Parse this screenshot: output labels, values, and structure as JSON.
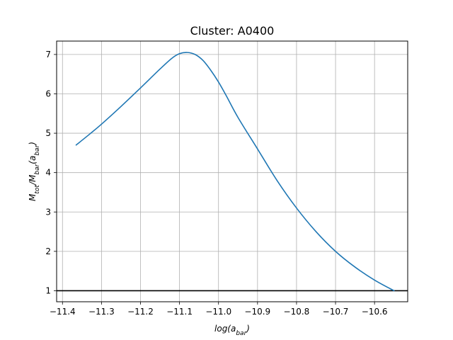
{
  "chart_data": {
    "type": "line",
    "title": "Cluster: A0400",
    "xlabel_main": "log(a",
    "xlabel_sub": "bar",
    "xlabel_close": ")",
    "ylabel_parts": {
      "m1": "M",
      "s1": "tot",
      "slash": "/M",
      "s2": "bar",
      "open": "(a",
      "s3": "bar",
      "close": ")"
    },
    "xlim": [
      -11.415,
      -10.515
    ],
    "ylim": [
      0.72,
      7.34
    ],
    "xticks": [
      -11.4,
      -11.3,
      -11.2,
      -11.1,
      -11.0,
      -10.9,
      -10.8,
      -10.7,
      -10.6
    ],
    "xtick_labels": [
      "−11.4",
      "−11.3",
      "−11.2",
      "−11.1",
      "−11.0",
      "−10.9",
      "−10.8",
      "−10.7",
      "−10.6"
    ],
    "yticks": [
      1,
      2,
      3,
      4,
      5,
      6,
      7
    ],
    "ytick_labels": [
      "1",
      "2",
      "3",
      "4",
      "5",
      "6",
      "7"
    ],
    "grid": true,
    "reference_line_y": 1,
    "series": [
      {
        "color": "#1f77b4",
        "x": [
          -11.365,
          -11.33,
          -11.3,
          -11.25,
          -11.2,
          -11.15,
          -11.12,
          -11.1,
          -11.08,
          -11.06,
          -11.04,
          -11.02,
          -11.0,
          -10.98,
          -10.95,
          -10.9,
          -10.85,
          -10.8,
          -10.75,
          -10.7,
          -10.65,
          -10.6,
          -10.55
        ],
        "y": [
          4.7,
          4.98,
          5.23,
          5.68,
          6.15,
          6.63,
          6.9,
          7.02,
          7.05,
          7.0,
          6.85,
          6.6,
          6.3,
          5.95,
          5.4,
          4.6,
          3.8,
          3.1,
          2.5,
          2.0,
          1.6,
          1.27,
          1.0
        ]
      }
    ],
    "colors": {
      "line": "#1f77b4",
      "grid": "#b0b0b0",
      "reference": "#000000"
    }
  }
}
